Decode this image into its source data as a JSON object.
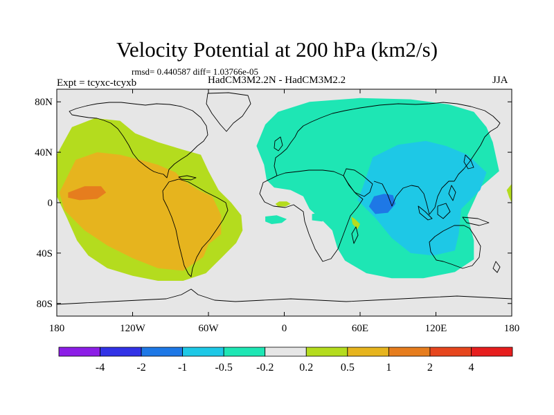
{
  "header": {
    "title": "Velocity Potential at 200 hPa (km2/s)",
    "stats": "rmsd= 0.440587 diff= 1.03766e-05",
    "experiment": "Expt = tcyxc-tcyxb",
    "models": "HadCM3M2.2N - HadCM3M2.2",
    "season": "JJA"
  },
  "colors": {
    "background_field": "#e6e6e6",
    "land_outline": "#000000"
  },
  "chart_data": {
    "type": "heatmap",
    "title": "Velocity Potential at 200 hPa (km2/s)",
    "xlabel": "",
    "ylabel": "",
    "xlim": [
      -180,
      180
    ],
    "ylim": [
      -90,
      90
    ],
    "x_ticks": [
      {
        "value": -180,
        "label": "180"
      },
      {
        "value": -120,
        "label": "120W"
      },
      {
        "value": -60,
        "label": "60W"
      },
      {
        "value": 0,
        "label": "0"
      },
      {
        "value": 60,
        "label": "60E"
      },
      {
        "value": 120,
        "label": "120E"
      },
      {
        "value": 180,
        "label": "180"
      }
    ],
    "y_ticks": [
      {
        "value": 80,
        "label": "80N"
      },
      {
        "value": 40,
        "label": "40N"
      },
      {
        "value": 0,
        "label": "0"
      },
      {
        "value": -40,
        "label": "40S"
      },
      {
        "value": -80,
        "label": "80S"
      }
    ],
    "colorbar": {
      "colors": [
        "#8c1ee6",
        "#3232e6",
        "#1e78e6",
        "#1ec8e6",
        "#1ee6b4",
        "#e6e6e6",
        "#b4dc1e",
        "#e6b41e",
        "#e67d1e",
        "#e6461e",
        "#e61e1e"
      ],
      "labels": [
        "-4",
        "-2",
        "-1",
        "-0.5",
        "-0.2",
        "0.2",
        "0.5",
        "1",
        "2",
        "4"
      ]
    },
    "regions": [
      {
        "name": "pacific-americas-positive",
        "level": 0.5,
        "color": "#b4dc1e",
        "lonlat": [
          [
            -168,
            60
          ],
          [
            -150,
            67
          ],
          [
            -130,
            65
          ],
          [
            -118,
            55
          ],
          [
            -100,
            48
          ],
          [
            -80,
            42
          ],
          [
            -66,
            38
          ],
          [
            -60,
            25
          ],
          [
            -52,
            10
          ],
          [
            -42,
            0
          ],
          [
            -34,
            -10
          ],
          [
            -33,
            -22
          ],
          [
            -38,
            -32
          ],
          [
            -50,
            -44
          ],
          [
            -62,
            -56
          ],
          [
            -80,
            -62
          ],
          [
            -100,
            -62
          ],
          [
            -120,
            -58
          ],
          [
            -140,
            -52
          ],
          [
            -155,
            -42
          ],
          [
            -164,
            -30
          ],
          [
            -172,
            -12
          ],
          [
            -180,
            5
          ],
          [
            -180,
            38
          ]
        ]
      },
      {
        "name": "pacific-americas-core",
        "level": 1,
        "color": "#e6b41e",
        "lonlat": [
          [
            -172,
            20
          ],
          [
            -165,
            34
          ],
          [
            -148,
            40
          ],
          [
            -130,
            38
          ],
          [
            -114,
            34
          ],
          [
            -100,
            30
          ],
          [
            -86,
            24
          ],
          [
            -80,
            18
          ],
          [
            -68,
            10
          ],
          [
            -57,
            5
          ],
          [
            -50,
            -10
          ],
          [
            -50,
            -25
          ],
          [
            -60,
            -33
          ],
          [
            -64,
            -43
          ],
          [
            -80,
            -54
          ],
          [
            -100,
            -52
          ],
          [
            -120,
            -44
          ],
          [
            -140,
            -34
          ],
          [
            -158,
            -22
          ],
          [
            -174,
            -6
          ],
          [
            -178,
            8
          ]
        ]
      },
      {
        "name": "central-pacific-max",
        "level": 2,
        "color": "#e67d1e",
        "lonlat": [
          [
            -171,
            8
          ],
          [
            -158,
            13
          ],
          [
            -145,
            13
          ],
          [
            -141,
            8
          ],
          [
            -148,
            3
          ],
          [
            -162,
            2
          ],
          [
            -171,
            4
          ]
        ]
      },
      {
        "name": "asia-indian-negative",
        "level": -0.2,
        "color": "#1ee6b4",
        "lonlat": [
          [
            -22,
            45
          ],
          [
            -15,
            62
          ],
          [
            -5,
            72
          ],
          [
            20,
            80
          ],
          [
            60,
            83
          ],
          [
            100,
            82
          ],
          [
            130,
            78
          ],
          [
            150,
            72
          ],
          [
            160,
            60
          ],
          [
            165,
            48
          ],
          [
            170,
            25
          ],
          [
            155,
            12
          ],
          [
            145,
            -10
          ],
          [
            150,
            -30
          ],
          [
            150,
            -45
          ],
          [
            135,
            -55
          ],
          [
            110,
            -60
          ],
          [
            85,
            -60
          ],
          [
            65,
            -56
          ],
          [
            48,
            -46
          ],
          [
            42,
            -36
          ],
          [
            38,
            -22
          ],
          [
            30,
            -14
          ],
          [
            20,
            -5
          ],
          [
            15,
            5
          ],
          [
            5,
            10
          ],
          [
            -8,
            12
          ],
          [
            -14,
            18
          ],
          [
            -16,
            30
          ],
          [
            -20,
            40
          ]
        ]
      },
      {
        "name": "indian-asia-core",
        "level": -0.5,
        "color": "#1ec8e6",
        "lonlat": [
          [
            62,
            12
          ],
          [
            70,
            36
          ],
          [
            90,
            46
          ],
          [
            112,
            49
          ],
          [
            128,
            45
          ],
          [
            145,
            38
          ],
          [
            160,
            24
          ],
          [
            155,
            10
          ],
          [
            140,
            -5
          ],
          [
            138,
            -25
          ],
          [
            135,
            -38
          ],
          [
            118,
            -42
          ],
          [
            100,
            -40
          ],
          [
            85,
            -28
          ],
          [
            72,
            -12
          ],
          [
            58,
            2
          ]
        ]
      },
      {
        "name": "bay-of-bengal-min",
        "level": -1,
        "color": "#1e78e6",
        "lonlat": [
          [
            67,
            -3
          ],
          [
            71,
            5
          ],
          [
            79,
            7
          ],
          [
            86,
            6
          ],
          [
            88,
            -1
          ],
          [
            82,
            -8
          ],
          [
            72,
            -9
          ]
        ]
      },
      {
        "name": "west-africa-positive",
        "level": 0.5,
        "color": "#b4dc1e",
        "lonlat": [
          [
            -7,
            -1
          ],
          [
            -4,
            1
          ],
          [
            2,
            1
          ],
          [
            5,
            -1
          ],
          [
            1,
            -3
          ],
          [
            -5,
            -3
          ]
        ]
      },
      {
        "name": "east-africa-positive",
        "level": 0.5,
        "color": "#b4dc1e",
        "lonlat": [
          [
            53,
            -11
          ],
          [
            56,
            -13
          ],
          [
            60,
            -17
          ],
          [
            58,
            -21
          ],
          [
            54,
            -17
          ]
        ]
      },
      {
        "name": "dateline-positive",
        "level": 0.5,
        "color": "#b4dc1e",
        "lonlat": [
          [
            180,
            0
          ],
          [
            178,
            4
          ],
          [
            176,
            10
          ],
          [
            180,
            15
          ]
        ]
      },
      {
        "name": "south-atlantic-negative",
        "level": -0.2,
        "color": "#1ee6b4",
        "lonlat": [
          [
            -15,
            -11
          ],
          [
            -6,
            -10
          ],
          [
            2,
            -13
          ],
          [
            -2,
            -16
          ],
          [
            -10,
            -17
          ],
          [
            -15,
            -15
          ]
        ]
      },
      {
        "name": "angola-negative",
        "level": -0.2,
        "color": "#1ee6b4",
        "lonlat": [
          [
            22,
            -9
          ],
          [
            28,
            -8
          ],
          [
            34,
            -11
          ],
          [
            30,
            -15
          ],
          [
            22,
            -14
          ]
        ]
      }
    ]
  }
}
